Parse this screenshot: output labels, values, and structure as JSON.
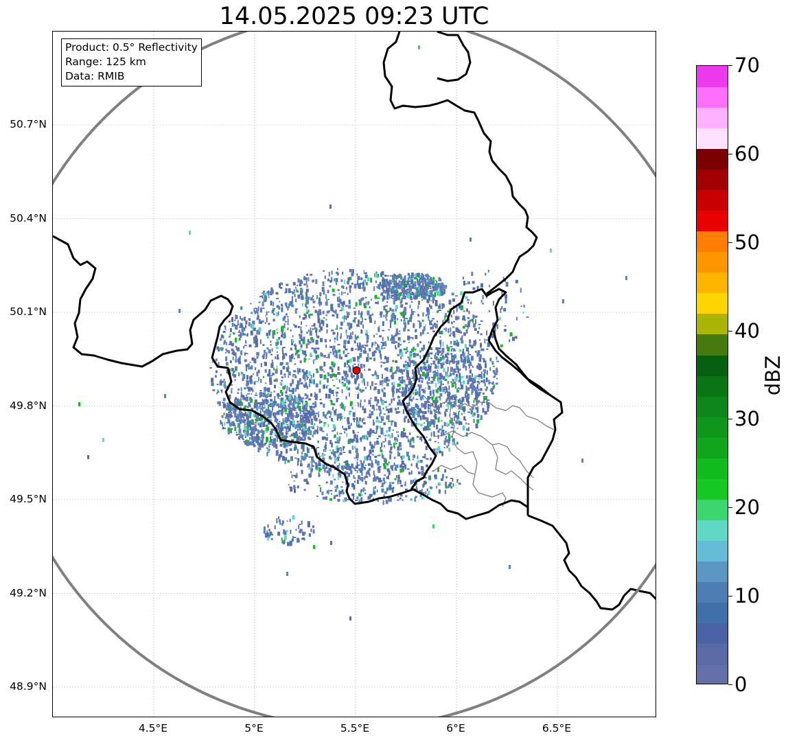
{
  "title": "14.05.2025 09:23 UTC",
  "info": {
    "product": "Product: 0.5° Reflectivity",
    "range": "Range: 125 km",
    "data": "Data: RMIB"
  },
  "map": {
    "lon_range": [
      4.0,
      7.0
    ],
    "lat_range": [
      48.8,
      51.0
    ],
    "radar_site": {
      "lon": 5.505,
      "lat": 49.914
    },
    "range_km": 125,
    "gridlines": true,
    "lat_ticks": [
      {
        "value": 48.9,
        "label": "48.9°N"
      },
      {
        "value": 49.2,
        "label": "49.2°N"
      },
      {
        "value": 49.5,
        "label": "49.5°N"
      },
      {
        "value": 49.8,
        "label": "49.8°N"
      },
      {
        "value": 50.1,
        "label": "50.1°N"
      },
      {
        "value": 50.4,
        "label": "50.4°N"
      },
      {
        "value": 50.7,
        "label": "50.7°N"
      }
    ],
    "lon_ticks": [
      {
        "value": 4.5,
        "label": "4.5°E"
      },
      {
        "value": 5.0,
        "label": "5°E"
      },
      {
        "value": 5.5,
        "label": "5.5°E"
      },
      {
        "value": 6.0,
        "label": "6°E"
      },
      {
        "value": 6.5,
        "label": "6.5°E"
      }
    ],
    "colors": {
      "range_ring": "#808080",
      "border": "#000000",
      "district": "#808080",
      "radar_marker": "#e00000",
      "grid": "#b0b0b0"
    }
  },
  "colorbar": {
    "label": "dBZ",
    "min": 0,
    "max": 70,
    "step": 2.5,
    "ticks": [
      "0",
      "10",
      "20",
      "30",
      "40",
      "50",
      "60",
      "70"
    ],
    "colors": [
      "#6470a8",
      "#5a6aa5",
      "#4a62a6",
      "#4170a8",
      "#4d7db3",
      "#5a96c2",
      "#65bcd6",
      "#5fd8c5",
      "#3dd56e",
      "#15c822",
      "#12bc1f",
      "#11a61b",
      "#10961a",
      "#0d8518",
      "#0a7515",
      "#076010",
      "#457a0e",
      "#aab508",
      "#ffd500",
      "#ffb400",
      "#ff9600",
      "#ff7d00",
      "#e60000",
      "#c80000",
      "#a00000",
      "#7d0000",
      "#ffe0ff",
      "#ffb2ff",
      "#ff70ff",
      "#ec3aec"
    ]
  }
}
